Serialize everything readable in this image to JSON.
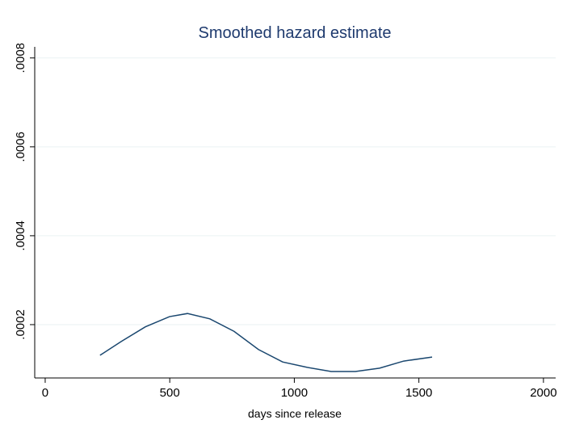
{
  "chart_data": {
    "type": "line",
    "title": "Smoothed hazard estimate",
    "x_label": "days since release",
    "x": [
      220,
      305,
      402,
      499,
      571,
      661,
      758,
      856,
      953,
      1050,
      1148,
      1245,
      1342,
      1439,
      1553
    ],
    "series": [
      {
        "color": "#1a476f",
        "values": [
          0.000131,
          0.000162,
          0.000195,
          0.000218,
          0.000225,
          0.000213,
          0.000185,
          0.000144,
          0.000116,
          0.000104,
          9.45e-05,
          9.45e-05,
          0.000102,
          0.000118,
          0.000127
        ]
      }
    ],
    "xlim": [
      -42,
      2049
    ],
    "ylim": [
      8e-05,
      0.000825
    ],
    "xticks": [
      0,
      500,
      1000,
      1500,
      2000
    ],
    "yticks": [
      {
        "value": 0.0002,
        "label": ".0002"
      },
      {
        "value": 0.0004,
        "label": ".0004"
      },
      {
        "value": 0.0006,
        "label": ".0006"
      },
      {
        "value": 0.0008,
        "label": ".0008"
      }
    ],
    "grid": true
  }
}
